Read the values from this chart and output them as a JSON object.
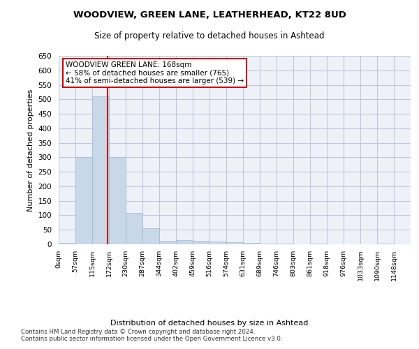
{
  "title": "WOODVIEW, GREEN LANE, LEATHERHEAD, KT22 8UD",
  "subtitle": "Size of property relative to detached houses in Ashtead",
  "xlabel": "Distribution of detached houses by size in Ashtead",
  "ylabel": "Number of detached properties",
  "footer1": "Contains HM Land Registry data © Crown copyright and database right 2024.",
  "footer2": "Contains public sector information licensed under the Open Government Licence v3.0.",
  "bin_labels": [
    "0sqm",
    "57sqm",
    "115sqm",
    "172sqm",
    "230sqm",
    "287sqm",
    "344sqm",
    "402sqm",
    "459sqm",
    "516sqm",
    "574sqm",
    "631sqm",
    "689sqm",
    "746sqm",
    "803sqm",
    "861sqm",
    "918sqm",
    "976sqm",
    "1033sqm",
    "1090sqm",
    "1148sqm"
  ],
  "bar_values": [
    5,
    300,
    510,
    300,
    108,
    55,
    13,
    15,
    12,
    10,
    7,
    5,
    3,
    3,
    0,
    2,
    0,
    0,
    0,
    3,
    0
  ],
  "bar_color": "#c8d8e8",
  "bar_edge_color": "#a0b8d0",
  "grid_color": "#c0c8d8",
  "background_color": "#eef2f8",
  "vline_color": "#cc0000",
  "annotation_text": "WOODVIEW GREEN LANE: 168sqm\n← 58% of detached houses are smaller (765)\n41% of semi-detached houses are larger (539) →",
  "annotation_box_color": "#ffffff",
  "annotation_box_edge": "#cc0000",
  "ylim": [
    0,
    650
  ],
  "yticks": [
    0,
    50,
    100,
    150,
    200,
    250,
    300,
    350,
    400,
    450,
    500,
    550,
    600,
    650
  ]
}
